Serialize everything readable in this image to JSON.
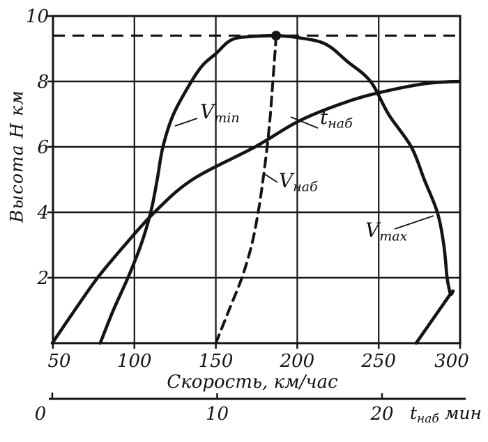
{
  "figure": {
    "y_axis_title": "Высота Н км",
    "x_axis_title": "Скорость, км/час",
    "time_axis_label": {
      "main": "t",
      "sub": "наб",
      "unit": " мин"
    }
  },
  "chart_data": {
    "type": "line",
    "y_axis": {
      "label": "Высота Н км",
      "range": [
        0,
        10
      ],
      "ticks": [
        2,
        4,
        6,
        8,
        10
      ]
    },
    "x_axis_speed": {
      "label": "Скорость, км/час",
      "range": [
        50,
        300
      ],
      "ticks": [
        50,
        100,
        150,
        200,
        250,
        300
      ]
    },
    "x_axis_time": {
      "label": "tнаб мин",
      "range": [
        0,
        25
      ],
      "ticks": [
        0,
        10,
        20
      ]
    },
    "grid": true,
    "ceiling_altitude_km": 9.4,
    "peak_point": {
      "speed_kmh": 187,
      "altitude_km": 9.4
    },
    "series": [
      {
        "id": "vmin",
        "label": "Vmin",
        "x_axis": "speed",
        "line": "solid",
        "points": [
          [
            79,
            0
          ],
          [
            87,
            1
          ],
          [
            96,
            2
          ],
          [
            104,
            3
          ],
          [
            110,
            4
          ],
          [
            114,
            5
          ],
          [
            117.5,
            6
          ],
          [
            124,
            7
          ],
          [
            135,
            8
          ],
          [
            142,
            8.5
          ],
          [
            150,
            8.85
          ],
          [
            160,
            9.28
          ],
          [
            174,
            9.38
          ],
          [
            187,
            9.4
          ]
        ]
      },
      {
        "id": "vmax",
        "label": "Vmax",
        "x_axis": "speed",
        "line": "solid",
        "points": [
          [
            187,
            9.4
          ],
          [
            199,
            9.35
          ],
          [
            217,
            9.15
          ],
          [
            231,
            8.6
          ],
          [
            245,
            8
          ],
          [
            256,
            7
          ],
          [
            270,
            6
          ],
          [
            278,
            5
          ],
          [
            286,
            4
          ],
          [
            290,
            3
          ],
          [
            292,
            2
          ],
          [
            294,
            1.5
          ],
          [
            294,
            1.5
          ],
          [
            273,
            0
          ]
        ]
      },
      {
        "id": "tnab",
        "label": "tнаб",
        "x_axis": "time",
        "line": "solid",
        "points": [
          [
            0,
            0
          ],
          [
            1.35,
            1
          ],
          [
            2.75,
            2
          ],
          [
            4.4,
            3
          ],
          [
            6.2,
            4
          ],
          [
            8.5,
            5
          ],
          [
            12.3,
            6
          ],
          [
            15,
            6.8
          ],
          [
            18,
            7.4
          ],
          [
            20.2,
            7.7
          ],
          [
            22.7,
            7.94
          ],
          [
            24.7,
            8
          ]
        ]
      },
      {
        "id": "vnab",
        "label": "Vнаб",
        "x_axis": "speed",
        "line": "dashed",
        "points": [
          [
            150,
            0
          ],
          [
            158,
            1
          ],
          [
            166,
            2
          ],
          [
            172,
            3
          ],
          [
            176,
            4
          ],
          [
            179,
            5
          ],
          [
            181.5,
            6
          ],
          [
            183.5,
            7
          ],
          [
            185,
            8
          ],
          [
            186.5,
            9
          ],
          [
            187,
            9.4
          ]
        ]
      }
    ],
    "series_labels": {
      "vmin": {
        "main": "V",
        "sub": "min"
      },
      "tnab": {
        "main": "t",
        "sub": "наб"
      },
      "vnab": {
        "main": "V",
        "sub": "наб"
      },
      "vmax": {
        "main": "V",
        "sub": "max"
      }
    },
    "ink_color": "#141414",
    "background_color": "#ffffff"
  }
}
